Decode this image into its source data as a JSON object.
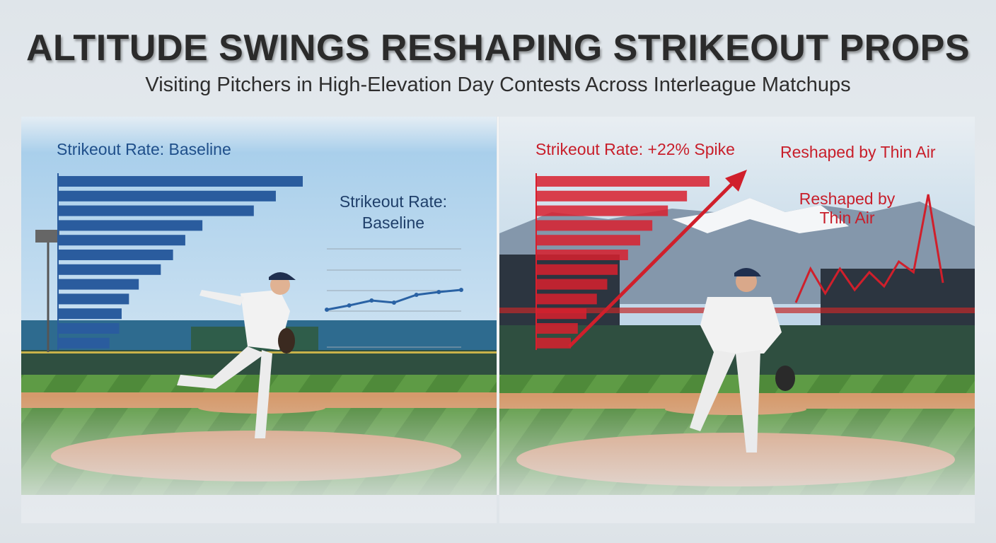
{
  "header": {
    "title": "ALTITUDE SWINGS RESHAPING STRIKEOUT PROPS",
    "subtitle": "Visiting Pitchers in High-Elevation Day Contests Across Interleague Matchups"
  },
  "left_panel": {
    "bar_label": "Strikeout Rate: Baseline",
    "line_label": "Strikeout Rate: Baseline",
    "bars": [
      100,
      89,
      80,
      59,
      52,
      47,
      42,
      33,
      29,
      26,
      25,
      21
    ],
    "bar_color": "#2a5c9e",
    "line": [
      2,
      8,
      15,
      12,
      23,
      27,
      30
    ],
    "line_color": "#2a62a4"
  },
  "right_panel": {
    "bar_label": "Strikeout Rate: +22% Spike",
    "corner_label": "Reshaped by Thin Air",
    "line_label": "Reshaped by Thin Air",
    "bars": [
      100,
      87,
      76,
      67,
      60,
      53,
      47,
      41,
      35,
      29,
      24,
      20
    ],
    "bar_color": "#d8202e",
    "line": [
      2,
      50,
      15,
      50,
      20,
      45,
      25,
      60,
      45,
      155,
      30
    ],
    "line_color": "#d01f2b"
  }
}
